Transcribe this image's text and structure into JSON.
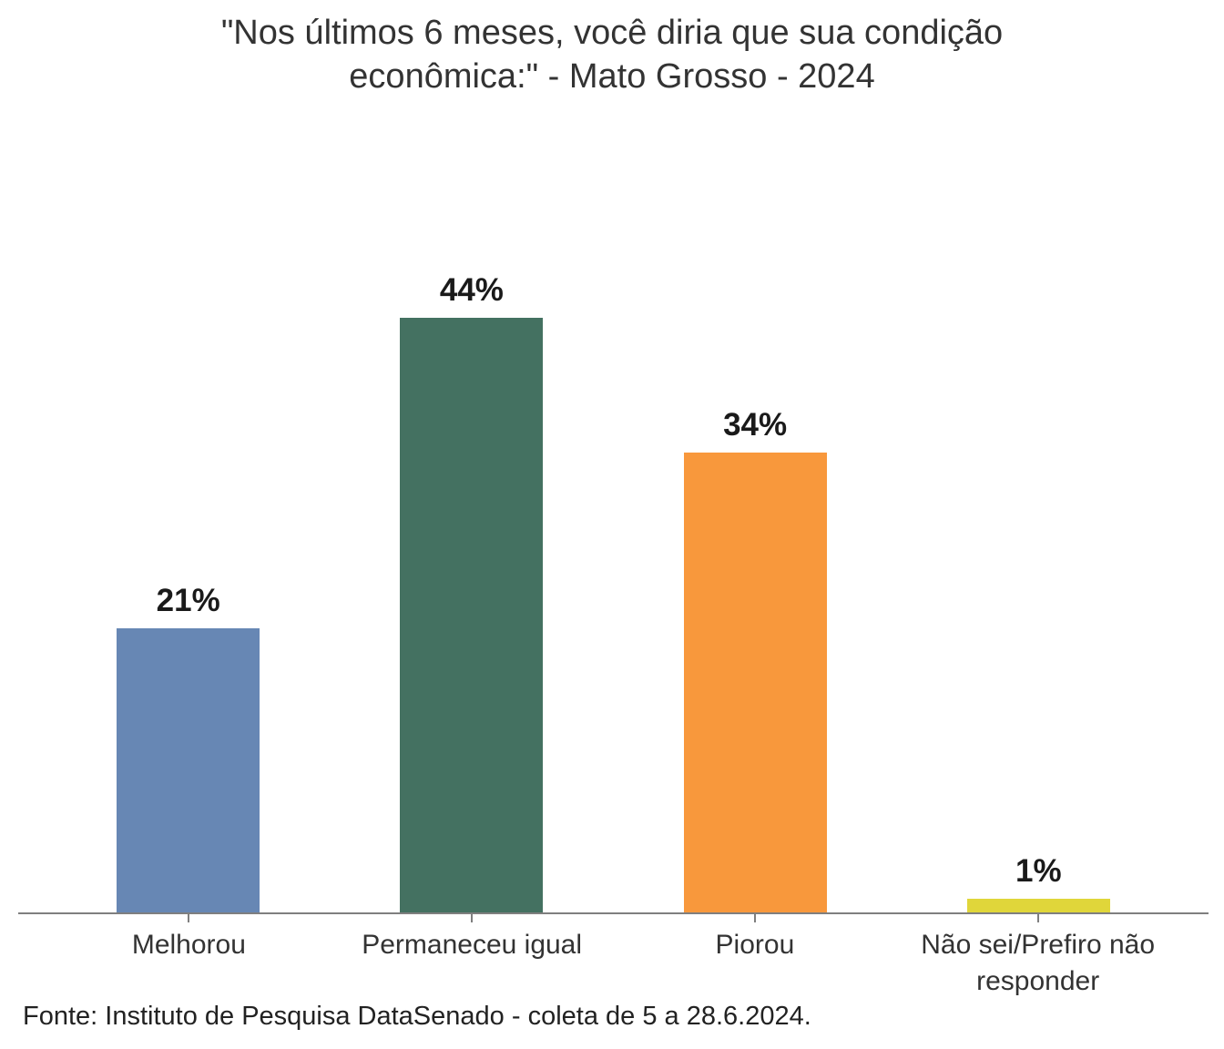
{
  "title": {
    "text": "\"Nos últimos 6 meses, você diria que sua condição econômica:\" - Mato Grosso - 2024",
    "lines": [
      "\"Nos últimos 6 meses, você diria que sua condição",
      "econômica:\" - Mato Grosso - 2024"
    ]
  },
  "chart_data": {
    "type": "bar",
    "orientation": "vertical",
    "title": "\"Nos últimos 6 meses, você diria que sua condição econômica:\" - Mato Grosso - 2024",
    "categories": [
      "Melhorou",
      "Permaneceu igual",
      "Piorou",
      "Não sei/Prefiro não responder"
    ],
    "values": [
      21,
      44,
      34,
      1
    ],
    "value_labels": [
      "21%",
      "44%",
      "34%",
      "1%"
    ],
    "bar_colors": [
      "#6787b4",
      "#447161",
      "#f8983c",
      "#e0d63a"
    ],
    "xlabel": "",
    "ylabel": "",
    "ylim": [
      0,
      57.5
    ],
    "grid": false,
    "legend": false,
    "y_axis_shown": false,
    "axis_color": "#7f7f7f"
  },
  "footer": {
    "source": "Fonte: Instituto de Pesquisa DataSenado - coleta de 5 a 28.6.2024."
  },
  "colors": {
    "background": "#ffffff",
    "title_text": "#333333",
    "value_text": "#1a1a1a",
    "axis_label_text": "#333333",
    "axis_line": "#7f7f7f",
    "footer_text": "#222222"
  }
}
